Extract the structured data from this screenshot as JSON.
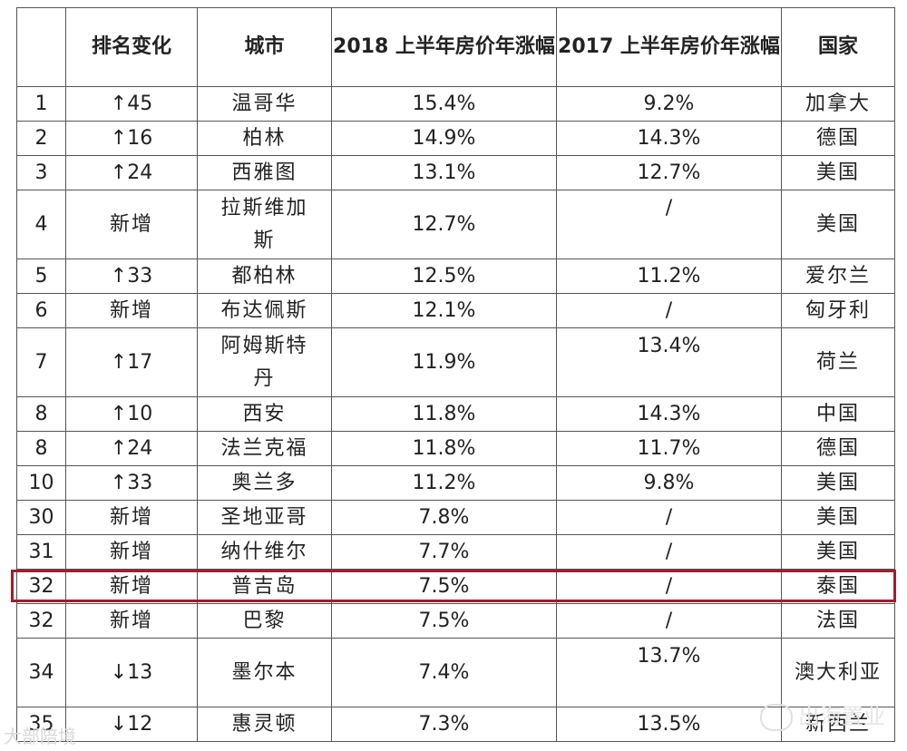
{
  "header": {
    "index": "",
    "rank_change": "排名变化",
    "city": "城市",
    "growth_2018": "2018 上半年房价年涨幅",
    "growth_2017": "2017 上半年房价年涨幅",
    "country": "国家"
  },
  "rows": [
    {
      "rank": "1",
      "change": "↑45",
      "city": "温哥华",
      "y2018": "15.4%",
      "y2017": "9.2%",
      "country": "加拿大"
    },
    {
      "rank": "2",
      "change": "↑16",
      "city": "柏林",
      "y2018": "14.9%",
      "y2017": "14.3%",
      "country": "德国"
    },
    {
      "rank": "3",
      "change": "↑24",
      "city": "西雅图",
      "y2018": "13.1%",
      "y2017": "12.7%",
      "country": "美国"
    },
    {
      "rank": "4",
      "change": "新增",
      "city": "拉斯维加斯",
      "y2018": "12.7%",
      "y2017": "/",
      "country": "美国"
    },
    {
      "rank": "5",
      "change": "↑33",
      "city": "都柏林",
      "y2018": "12.5%",
      "y2017": "11.2%",
      "country": "爱尔兰"
    },
    {
      "rank": "6",
      "change": "新增",
      "city": "布达佩斯",
      "y2018": "12.1%",
      "y2017": "/",
      "country": "匈牙利"
    },
    {
      "rank": "7",
      "change": "↑17",
      "city": "阿姆斯特丹",
      "y2018": "11.9%",
      "y2017": "13.4%",
      "country": "荷兰"
    },
    {
      "rank": "8",
      "change": "↑10",
      "city": "西安",
      "y2018": "11.8%",
      "y2017": "14.3%",
      "country": "中国"
    },
    {
      "rank": "8",
      "change": "↑24",
      "city": "法兰克福",
      "y2018": "11.8%",
      "y2017": "11.7%",
      "country": "德国"
    },
    {
      "rank": "10",
      "change": "↑33",
      "city": "奥兰多",
      "y2018": "11.2%",
      "y2017": "9.8%",
      "country": "美国"
    },
    {
      "rank": "30",
      "change": "新增",
      "city": "圣地亚哥",
      "y2018": "7.8%",
      "y2017": "/",
      "country": "美国"
    },
    {
      "rank": "31",
      "change": "新增",
      "city": "纳什维尔",
      "y2018": "7.7%",
      "y2017": "/",
      "country": "美国"
    },
    {
      "rank": "32",
      "change": "新增",
      "city": "普吉岛",
      "y2018": "7.5%",
      "y2017": "/",
      "country": "泰国"
    },
    {
      "rank": "32",
      "change": "新增",
      "city": "巴黎",
      "y2018": "7.5%",
      "y2017": "/",
      "country": "法国"
    },
    {
      "rank": "34",
      "change": "↓13",
      "city": "墨尔本",
      "y2018": "7.4%",
      "y2017": "13.7%",
      "country": "澳大利亚"
    },
    {
      "rank": "35",
      "change": "↓12",
      "city": "惠灵顿",
      "y2018": "7.3%",
      "y2017": "13.5%",
      "country": "新西兰"
    }
  ],
  "highlight_row_index": 12,
  "watermarks": {
    "left": "大部陪境",
    "right": "出海置业"
  },
  "colors": {
    "highlight": "#a11d2e",
    "border": "#555555"
  }
}
